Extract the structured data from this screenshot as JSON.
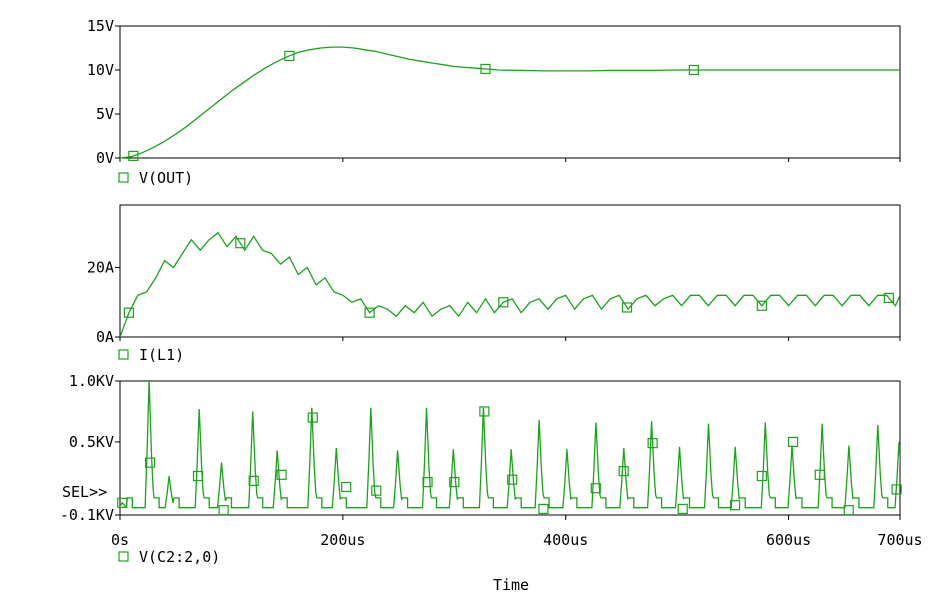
{
  "chart_data": [
    {
      "type": "line",
      "title": "",
      "xlabel": "",
      "ylabel": "",
      "xlim": [
        0,
        700
      ],
      "ylim": [
        0,
        15
      ],
      "yticks": [
        {
          "value": 0,
          "label": "0V"
        },
        {
          "value": 5,
          "label": "5V"
        },
        {
          "value": 10,
          "label": "10V"
        },
        {
          "value": 15,
          "label": "15V"
        }
      ],
      "series": [
        {
          "name": "V(OUT)",
          "color": "#1aa31a",
          "x": [
            0,
            10,
            20,
            30,
            40,
            50,
            60,
            70,
            80,
            90,
            100,
            110,
            120,
            130,
            140,
            150,
            160,
            170,
            180,
            190,
            200,
            210,
            220,
            230,
            240,
            250,
            260,
            270,
            280,
            290,
            300,
            310,
            320,
            330,
            340,
            360,
            380,
            400,
            420,
            440,
            460,
            480,
            500,
            520,
            540,
            560,
            580,
            600,
            620,
            640,
            660,
            680,
            700
          ],
          "values": [
            0,
            0.15,
            0.6,
            1.2,
            1.9,
            2.7,
            3.6,
            4.6,
            5.6,
            6.6,
            7.6,
            8.5,
            9.4,
            10.2,
            10.9,
            11.5,
            12.0,
            12.3,
            12.5,
            12.6,
            12.6,
            12.5,
            12.3,
            12.1,
            11.8,
            11.5,
            11.2,
            11.0,
            10.8,
            10.6,
            10.4,
            10.3,
            10.2,
            10.1,
            10.0,
            9.95,
            9.9,
            9.9,
            9.9,
            9.95,
            9.95,
            9.95,
            10.0,
            10.0,
            10.0,
            10.0,
            10.0,
            10.0,
            10.0,
            10.0,
            10.0,
            10.0,
            10.0
          ],
          "markers_x": [
            12,
            152,
            328,
            515
          ]
        }
      ]
    },
    {
      "type": "line",
      "title": "",
      "xlabel": "",
      "ylabel": "",
      "xlim": [
        0,
        700
      ],
      "ylim": [
        0,
        38
      ],
      "yticks": [
        {
          "value": 0,
          "label": "0A"
        },
        {
          "value": 20,
          "label": "20A"
        }
      ],
      "series": [
        {
          "name": "I(L1)",
          "color": "#1aa31a",
          "x": [
            0,
            8,
            16,
            24,
            32,
            40,
            48,
            56,
            64,
            72,
            80,
            88,
            96,
            104,
            112,
            120,
            128,
            136,
            144,
            152,
            160,
            168,
            176,
            184,
            192,
            200,
            208,
            216,
            224,
            232,
            240,
            248,
            256,
            264,
            272,
            280,
            288,
            296,
            304,
            312,
            320,
            328,
            336,
            344,
            352,
            360,
            368,
            376,
            384,
            392,
            400,
            408,
            416,
            424,
            432,
            440,
            448,
            456,
            464,
            472,
            480,
            488,
            496,
            504,
            512,
            520,
            528,
            536,
            544,
            552,
            560,
            568,
            576,
            584,
            592,
            600,
            608,
            616,
            624,
            632,
            640,
            648,
            656,
            664,
            672,
            680,
            688,
            696,
            700
          ],
          "values": [
            0,
            7,
            12,
            13,
            17,
            22,
            20,
            24,
            28,
            25,
            28,
            30,
            26,
            29,
            25,
            29,
            25,
            24,
            21,
            23,
            18,
            20,
            15,
            17,
            13,
            12,
            10,
            11,
            7,
            9,
            8,
            6,
            9,
            7,
            10,
            6,
            8,
            9,
            6,
            10,
            7,
            11,
            7,
            10,
            11,
            7,
            10,
            11,
            8,
            11,
            12,
            8,
            11,
            12,
            8,
            11,
            12,
            8,
            11,
            12,
            9,
            11,
            12,
            9,
            12,
            12,
            9,
            12,
            12,
            9,
            12,
            12,
            9,
            12,
            12,
            9,
            12,
            12,
            9,
            12,
            12,
            9,
            12,
            12,
            9,
            12,
            12,
            9,
            12
          ],
          "markers_x": [
            8,
            108,
            224,
            344,
            455,
            576,
            690
          ]
        }
      ]
    },
    {
      "type": "line",
      "title": "",
      "xlabel": "Time",
      "ylabel": "",
      "xlim": [
        0,
        700
      ],
      "ylim": [
        -0.1,
        1.0
      ],
      "yticks": [
        {
          "value": -0.1,
          "label": "-0.1KV"
        },
        {
          "value": 0.5,
          "label": "0.5KV"
        },
        {
          "value": 1.0,
          "label": "1.0KV"
        }
      ],
      "xticks": [
        {
          "value": 0,
          "label": "0s"
        },
        {
          "value": 200,
          "label": "200us"
        },
        {
          "value": 400,
          "label": "400us"
        },
        {
          "value": 600,
          "label": "600us"
        },
        {
          "value": 700,
          "label": "700us"
        }
      ],
      "series": [
        {
          "name": "V(C2:2,0)",
          "color": "#1aa31a",
          "base": -0.04,
          "spikes": [
            {
              "x": 3,
              "peak": 0.0
            },
            {
              "x": 27,
              "peak": 1.0
            },
            {
              "x": 45,
              "peak": 0.22
            },
            {
              "x": 72,
              "peak": 0.77
            },
            {
              "x": 92,
              "peak": 0.33
            },
            {
              "x": 120,
              "peak": 0.75
            },
            {
              "x": 142,
              "peak": 0.43
            },
            {
              "x": 173,
              "peak": 0.78
            },
            {
              "x": 195,
              "peak": 0.45
            },
            {
              "x": 226,
              "peak": 0.78
            },
            {
              "x": 250,
              "peak": 0.43
            },
            {
              "x": 276,
              "peak": 0.78
            },
            {
              "x": 300,
              "peak": 0.44
            },
            {
              "x": 327,
              "peak": 0.78
            },
            {
              "x": 352,
              "peak": 0.44
            },
            {
              "x": 377,
              "peak": 0.68
            },
            {
              "x": 402,
              "peak": 0.44
            },
            {
              "x": 428,
              "peak": 0.66
            },
            {
              "x": 453,
              "peak": 0.45
            },
            {
              "x": 478,
              "peak": 0.67
            },
            {
              "x": 503,
              "peak": 0.46
            },
            {
              "x": 529,
              "peak": 0.65
            },
            {
              "x": 553,
              "peak": 0.46
            },
            {
              "x": 580,
              "peak": 0.66
            },
            {
              "x": 604,
              "peak": 0.47
            },
            {
              "x": 631,
              "peak": 0.65
            },
            {
              "x": 655,
              "peak": 0.47
            },
            {
              "x": 681,
              "peak": 0.64
            },
            {
              "x": 700,
              "peak": 0.5
            }
          ],
          "markers": [
            {
              "x": 2,
              "y": 0.0
            },
            {
              "x": 27,
              "y": 0.33
            },
            {
              "x": 70,
              "y": 0.22
            },
            {
              "x": 93,
              "y": -0.06
            },
            {
              "x": 120,
              "y": 0.18
            },
            {
              "x": 145,
              "y": 0.23
            },
            {
              "x": 173,
              "y": 0.7
            },
            {
              "x": 203,
              "y": 0.13
            },
            {
              "x": 230,
              "y": 0.1
            },
            {
              "x": 276,
              "y": 0.17
            },
            {
              "x": 300,
              "y": 0.17
            },
            {
              "x": 327,
              "y": 0.75
            },
            {
              "x": 352,
              "y": 0.19
            },
            {
              "x": 380,
              "y": -0.05
            },
            {
              "x": 427,
              "y": 0.12
            },
            {
              "x": 452,
              "y": 0.26
            },
            {
              "x": 478,
              "y": 0.49
            },
            {
              "x": 505,
              "y": -0.05
            },
            {
              "x": 552,
              "y": -0.02
            },
            {
              "x": 576,
              "y": 0.22
            },
            {
              "x": 604,
              "y": 0.5
            },
            {
              "x": 628,
              "y": 0.23
            },
            {
              "x": 654,
              "y": -0.06
            },
            {
              "x": 697,
              "y": 0.11
            }
          ]
        }
      ],
      "annotation": "SEL>>"
    }
  ]
}
